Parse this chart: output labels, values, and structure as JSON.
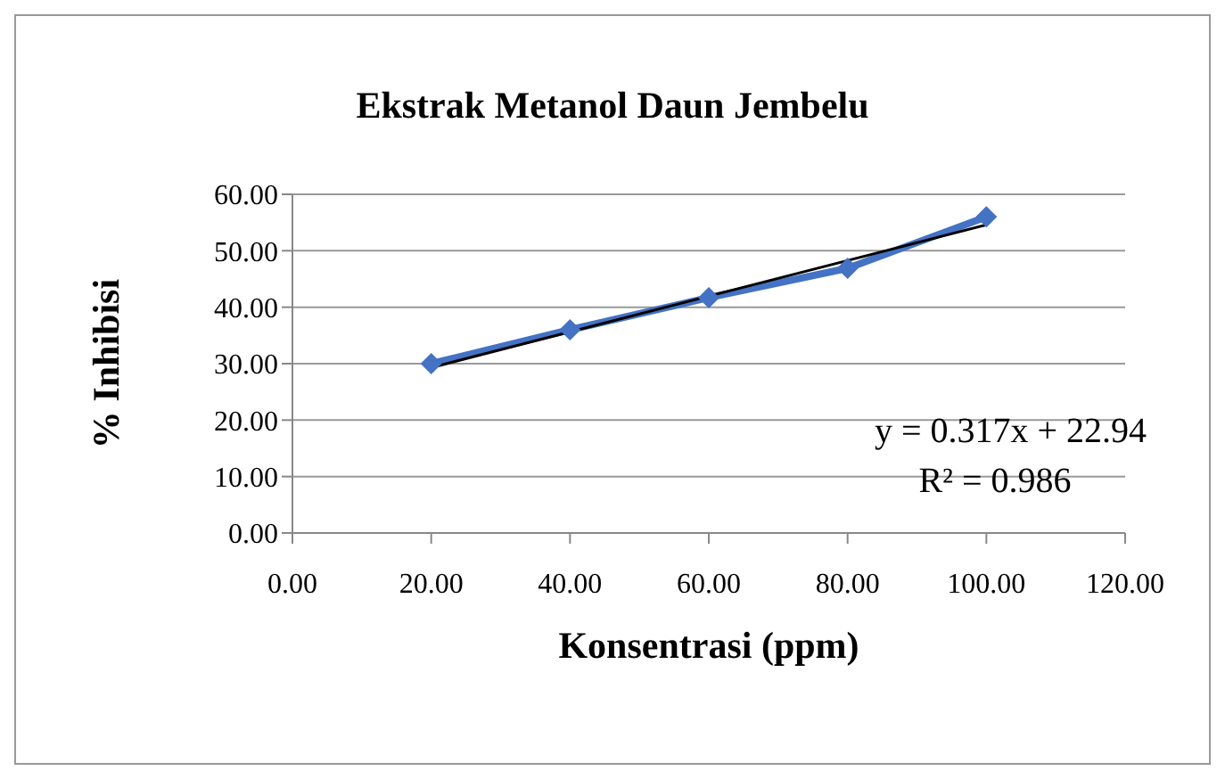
{
  "chart_data": {
    "type": "line",
    "title": "Ekstrak Metanol Daun Jembelu",
    "xlabel": "Konsentrasi (ppm)",
    "ylabel": "% Inhibisi",
    "x": [
      20,
      40,
      60,
      80,
      100
    ],
    "series": [
      {
        "color": "#4472c4",
        "values": [
          30.0,
          36.0,
          41.7,
          46.9,
          56.0
        ],
        "marker": "diamond"
      },
      {
        "color": "#000000",
        "x": [
          20,
          100
        ],
        "values": [
          29.3,
          54.6
        ],
        "marker": "none"
      }
    ],
    "xlim": [
      0,
      120
    ],
    "xticks": [
      {
        "value": 0,
        "label": "0.00"
      },
      {
        "value": 20,
        "label": "20.00"
      },
      {
        "value": 40,
        "label": "40.00"
      },
      {
        "value": 60,
        "label": "60.00"
      },
      {
        "value": 80,
        "label": "80.00"
      },
      {
        "value": 100,
        "label": "100.00"
      },
      {
        "value": 120,
        "label": "120.00"
      }
    ],
    "ylim": [
      0,
      60
    ],
    "yticks": [
      {
        "value": 0,
        "label": "0.00"
      },
      {
        "value": 10,
        "label": "10.00"
      },
      {
        "value": 20,
        "label": "20.00"
      },
      {
        "value": 30,
        "label": "30.00"
      },
      {
        "value": 40,
        "label": "40.00"
      },
      {
        "value": 50,
        "label": "50.00"
      },
      {
        "value": 60,
        "label": "60.00"
      }
    ],
    "grid": "y",
    "annotations": [
      "y = 0.317x + 22.94",
      "R² = 0.986"
    ]
  }
}
